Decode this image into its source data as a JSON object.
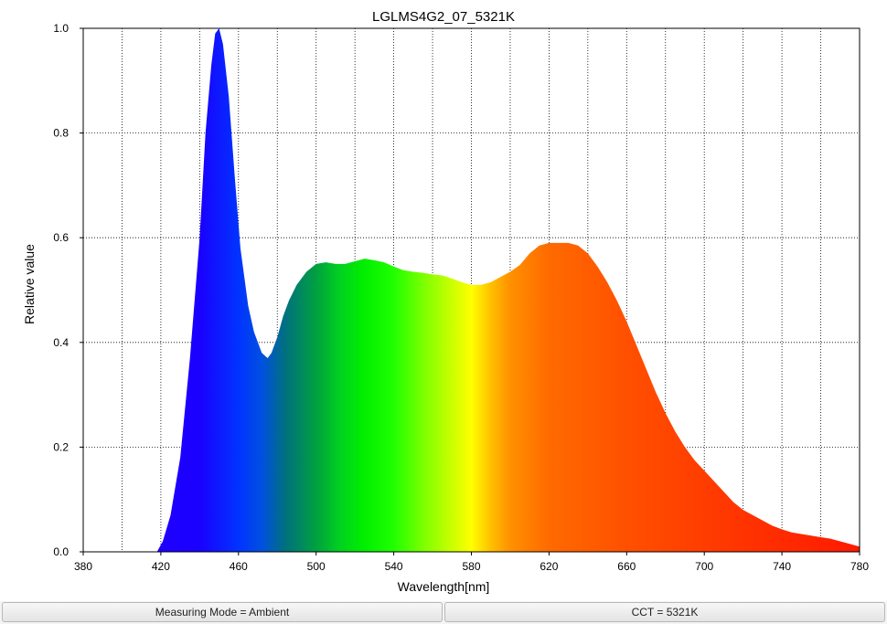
{
  "chart_data": {
    "type": "area",
    "title": "LGLMS4G2_07_5321K",
    "xlabel": "Wavelength[nm]",
    "ylabel": "Relative value",
    "xlim": [
      380,
      780
    ],
    "ylim": [
      0,
      1.0
    ],
    "x_ticks": [
      380,
      420,
      460,
      500,
      540,
      580,
      620,
      660,
      700,
      740,
      780
    ],
    "x_tick_labels": [
      "380",
      "420",
      "460",
      "500",
      "540",
      "580",
      "620",
      "660",
      "700",
      "740",
      "780"
    ],
    "x_gridlines": [
      400,
      420,
      440,
      460,
      480,
      500,
      520,
      540,
      560,
      580,
      600,
      620,
      640,
      660,
      680,
      700,
      720,
      740,
      760
    ],
    "y_ticks": [
      0,
      0.2,
      0.4,
      0.6,
      0.8,
      1.0
    ],
    "y_tick_labels": [
      "0.0",
      "0.2",
      "0.4",
      "0.6",
      "0.8",
      "1.0"
    ],
    "grid": true,
    "grid_style": "dotted",
    "fill": "visible-spectrum gradient",
    "x": [
      380,
      410,
      418,
      421,
      425,
      430,
      435,
      440,
      443,
      446,
      448,
      450,
      452,
      455,
      458,
      461,
      465,
      468,
      472,
      475,
      477,
      480,
      483,
      486,
      490,
      495,
      500,
      505,
      510,
      515,
      520,
      525,
      530,
      535,
      540,
      545,
      550,
      555,
      560,
      565,
      570,
      575,
      580,
      585,
      590,
      595,
      600,
      605,
      610,
      615,
      620,
      625,
      630,
      635,
      640,
      645,
      650,
      655,
      660,
      665,
      670,
      675,
      680,
      685,
      690,
      695,
      700,
      705,
      710,
      715,
      720,
      725,
      730,
      735,
      740,
      745,
      750,
      755,
      760,
      765,
      770,
      775,
      780
    ],
    "y": [
      0,
      0,
      0,
      0.02,
      0.07,
      0.18,
      0.37,
      0.6,
      0.8,
      0.93,
      0.99,
      1.0,
      0.97,
      0.87,
      0.72,
      0.58,
      0.47,
      0.42,
      0.38,
      0.37,
      0.38,
      0.41,
      0.45,
      0.48,
      0.51,
      0.535,
      0.55,
      0.553,
      0.55,
      0.55,
      0.555,
      0.56,
      0.557,
      0.553,
      0.545,
      0.538,
      0.535,
      0.533,
      0.53,
      0.528,
      0.522,
      0.515,
      0.51,
      0.51,
      0.515,
      0.525,
      0.535,
      0.548,
      0.57,
      0.585,
      0.59,
      0.59,
      0.59,
      0.585,
      0.57,
      0.545,
      0.515,
      0.48,
      0.44,
      0.395,
      0.35,
      0.305,
      0.265,
      0.23,
      0.2,
      0.175,
      0.155,
      0.135,
      0.115,
      0.095,
      0.08,
      0.07,
      0.06,
      0.05,
      0.043,
      0.037,
      0.034,
      0.031,
      0.028,
      0.025,
      0.02,
      0.015,
      0.01
    ]
  },
  "status_bar": {
    "left": "Measuring Mode = Ambient",
    "right": "CCT = 5321K"
  }
}
